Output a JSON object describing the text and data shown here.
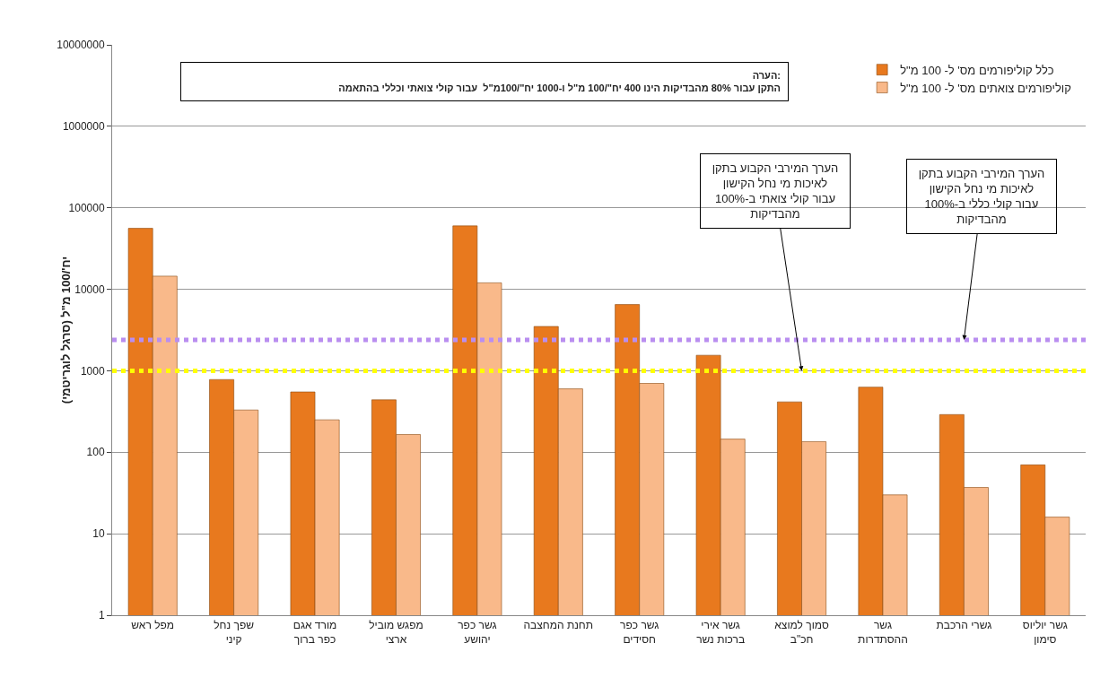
{
  "chart_data": {
    "type": "bar",
    "ylabel": "יח'/100 מ\"ל (סרגל לוגריטמי)",
    "categories": [
      "מפל ראש",
      "שפך נחל קיני",
      "מורד אגם כפר ברוך",
      "מפגש מוביל ארצי",
      "גשר כפר יהושע",
      "תחנת המחצבה",
      "גשר כפר חסידים",
      "גשר אירי ברכות נשר",
      "סמוך למוצא חכ\"ב",
      "גשר ההסתדרות",
      "גשרי הרכבת",
      "גשר יוליוס סימון"
    ],
    "series": [
      {
        "name": "כלל קוליפורמים מס' ל- 100 מ\"ל",
        "color": "#e8791e",
        "values": [
          56000,
          780,
          550,
          440,
          60000,
          3500,
          6500,
          1550,
          415,
          630,
          290,
          70
        ]
      },
      {
        "name": "קוליפורמים צואתים מס' ל- 100 מ\"ל",
        "color": "#f9b98a",
        "values": [
          14500,
          330,
          250,
          165,
          12000,
          600,
          700,
          145,
          135,
          30,
          37,
          16
        ]
      }
    ],
    "log": "y",
    "ylim": [
      1,
      10000000
    ],
    "yticks": [
      1,
      10,
      100,
      1000,
      10000,
      100000,
      1000000,
      10000000
    ],
    "grid": "y",
    "legend": "top right",
    "ref_lines": [
      {
        "axis": "y",
        "value": 2400,
        "color": "#b98ef0",
        "line_style": "dotted"
      },
      {
        "axis": "y",
        "value": 1000,
        "color": "#ffff00",
        "line_style": "dotted"
      }
    ],
    "annotations": [
      "הערה:\nהתקן עבור 80% מהבדיקות הינו 400 יח\"/100 מ\"ל ו-1000 יח\"/100מ\"ל  עבור קולי צואתי וכללי בהתאמה",
      {
        "text": "הערך המירבי הקבוע בתקן לאיכות מי נחל הקישון עבור קולי צואתי ב-100% מהבדיקות",
        "x": "סמוך למוצא חכ\"ב",
        "y": 1000
      },
      {
        "text": "הערך המירבי הקבוע בתקן לאיכות מי נחל הקישון עבור קולי כללי ב-100% מהבדיקות",
        "x": "גשרי הרכבת",
        "y": 2400
      }
    ]
  }
}
